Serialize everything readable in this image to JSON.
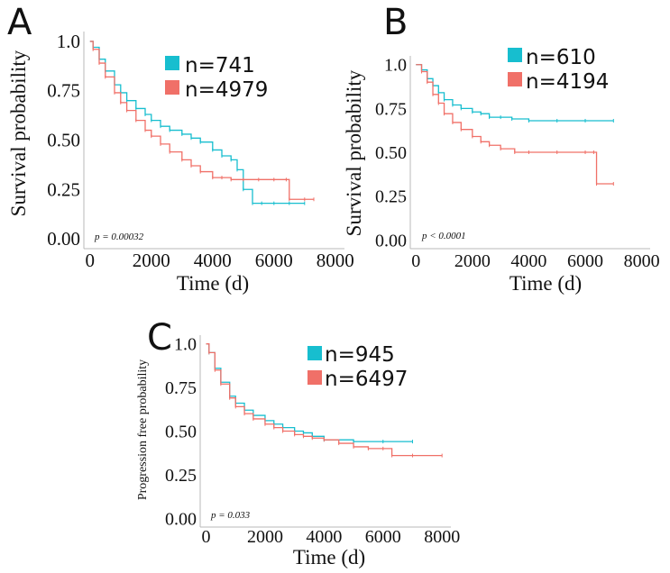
{
  "colors": {
    "teal": "#17BECF",
    "salmon": "#F07068",
    "axis": "#b8b8b8",
    "text": "#111111"
  },
  "chart_data": [
    {
      "panel": "A",
      "type": "line",
      "step": true,
      "ylabel": "Survival probability",
      "xlabel": "Time (d)",
      "xlim": [
        -200,
        8300
      ],
      "ylim": [
        -0.05,
        1.05
      ],
      "xticks": [
        0,
        2000,
        4000,
        6000,
        8000
      ],
      "xtick_labels": [
        "0",
        "2000",
        "4000",
        "6000",
        "8000"
      ],
      "yticks": [
        0,
        0.25,
        0.5,
        0.75,
        1.0
      ],
      "ytick_labels": [
        "0.00",
        "0.25",
        "0.50",
        "0.75",
        "1.0"
      ],
      "pvalue": "p = 0.00032",
      "series": [
        {
          "name": "n=741",
          "color": "#17BECF",
          "x": [
            0,
            100,
            300,
            500,
            800,
            1000,
            1200,
            1500,
            1800,
            2000,
            2300,
            2600,
            3000,
            3300,
            3600,
            4000,
            4300,
            4600,
            4800,
            5000,
            5300,
            5600,
            6000,
            6500,
            7000
          ],
          "y": [
            1.0,
            0.97,
            0.91,
            0.85,
            0.78,
            0.74,
            0.7,
            0.66,
            0.63,
            0.6,
            0.57,
            0.55,
            0.53,
            0.51,
            0.49,
            0.45,
            0.42,
            0.4,
            0.35,
            0.25,
            0.18,
            0.18,
            0.18,
            0.18,
            0.18
          ]
        },
        {
          "name": "n=4979",
          "color": "#F07068",
          "x": [
            0,
            100,
            300,
            500,
            800,
            1000,
            1200,
            1500,
            1800,
            2000,
            2300,
            2600,
            3000,
            3300,
            3600,
            4000,
            4300,
            4600,
            5000,
            5500,
            6000,
            6400,
            6500,
            7000,
            7300
          ],
          "y": [
            1.0,
            0.96,
            0.89,
            0.82,
            0.74,
            0.69,
            0.65,
            0.6,
            0.55,
            0.52,
            0.48,
            0.44,
            0.4,
            0.37,
            0.34,
            0.31,
            0.31,
            0.3,
            0.3,
            0.3,
            0.3,
            0.3,
            0.2,
            0.2,
            0.2
          ]
        }
      ]
    },
    {
      "panel": "B",
      "type": "line",
      "step": true,
      "ylabel": "Survival probability",
      "xlabel": "Time (d)",
      "xlim": [
        -200,
        8300
      ],
      "ylim": [
        -0.05,
        1.05
      ],
      "xticks": [
        0,
        2000,
        4000,
        6000,
        8000
      ],
      "xtick_labels": [
        "0",
        "2000",
        "4000",
        "6000",
        "8000"
      ],
      "yticks": [
        0,
        0.25,
        0.5,
        0.75,
        1.0
      ],
      "ytick_labels": [
        "0.00",
        "0.25",
        "0.50",
        "0.75",
        "1.0"
      ],
      "pvalue": "p < 0.0001",
      "series": [
        {
          "name": "n=610",
          "color": "#17BECF",
          "x": [
            0,
            200,
            400,
            600,
            800,
            1000,
            1300,
            1600,
            2000,
            2300,
            2600,
            3000,
            3400,
            4000,
            5000,
            6000,
            7000
          ],
          "y": [
            1.0,
            0.97,
            0.92,
            0.88,
            0.84,
            0.8,
            0.77,
            0.75,
            0.73,
            0.72,
            0.7,
            0.7,
            0.69,
            0.68,
            0.68,
            0.68,
            0.68
          ]
        },
        {
          "name": "n=4194",
          "color": "#F07068",
          "x": [
            0,
            200,
            400,
            600,
            800,
            1000,
            1300,
            1600,
            2000,
            2300,
            2600,
            3000,
            3500,
            4000,
            5000,
            6000,
            6300,
            6400,
            7000
          ],
          "y": [
            1.0,
            0.96,
            0.9,
            0.83,
            0.78,
            0.72,
            0.67,
            0.63,
            0.59,
            0.56,
            0.54,
            0.52,
            0.5,
            0.5,
            0.5,
            0.5,
            0.5,
            0.32,
            0.32
          ]
        }
      ]
    },
    {
      "panel": "C",
      "type": "line",
      "step": true,
      "ylabel": "Progression free probability",
      "xlabel": "Time (d)",
      "xlim": [
        -200,
        8300
      ],
      "ylim": [
        -0.05,
        1.05
      ],
      "xticks": [
        0,
        2000,
        4000,
        6000,
        8000
      ],
      "xtick_labels": [
        "0",
        "2000",
        "4000",
        "6000",
        "8000"
      ],
      "yticks": [
        0,
        0.25,
        0.5,
        0.75,
        1.0
      ],
      "ytick_labels": [
        "0.00",
        "0.25",
        "0.50",
        "0.75",
        "1.0"
      ],
      "pvalue": "p = 0.033",
      "series": [
        {
          "name": "n=945",
          "color": "#17BECF",
          "x": [
            0,
            100,
            300,
            500,
            800,
            1000,
            1300,
            1600,
            2000,
            2300,
            2600,
            3000,
            3300,
            3600,
            4000,
            5000,
            6000,
            7000
          ],
          "y": [
            1.0,
            0.95,
            0.86,
            0.78,
            0.7,
            0.66,
            0.62,
            0.59,
            0.56,
            0.54,
            0.52,
            0.5,
            0.49,
            0.47,
            0.45,
            0.44,
            0.44,
            0.44
          ]
        },
        {
          "name": "n=6497",
          "color": "#F07068",
          "x": [
            0,
            100,
            300,
            500,
            800,
            1000,
            1300,
            1600,
            2000,
            2300,
            2600,
            3000,
            3300,
            3600,
            4000,
            4500,
            5000,
            5500,
            6000,
            6300,
            7000,
            8000
          ],
          "y": [
            1.0,
            0.95,
            0.85,
            0.77,
            0.69,
            0.64,
            0.6,
            0.57,
            0.54,
            0.52,
            0.5,
            0.48,
            0.47,
            0.46,
            0.45,
            0.43,
            0.41,
            0.4,
            0.4,
            0.36,
            0.36,
            0.36
          ]
        }
      ]
    }
  ]
}
